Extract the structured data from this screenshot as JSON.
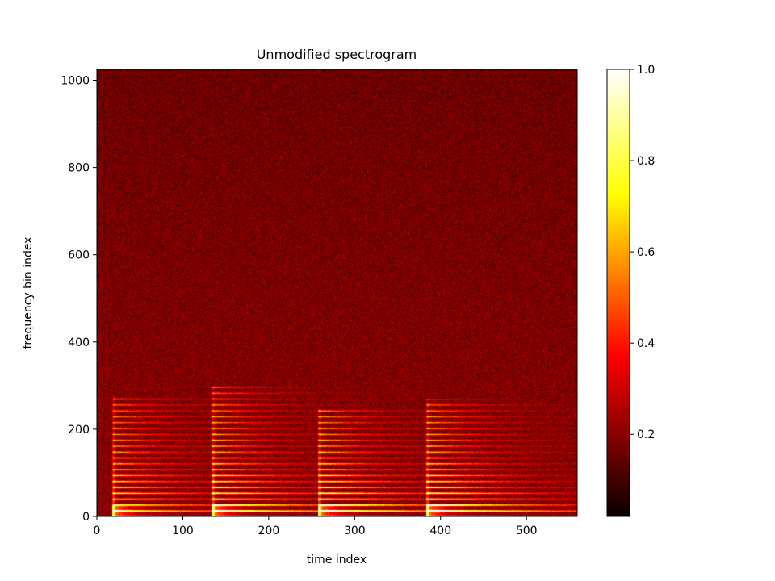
{
  "chart_data": {
    "type": "heatmap",
    "title": "Unmodified spectrogram",
    "xlabel": "time index",
    "ylabel": "frequency bin index",
    "xlim": [
      0,
      559
    ],
    "ylim": [
      0,
      1025
    ],
    "xticks": [
      0,
      100,
      200,
      300,
      400,
      500
    ],
    "yticks": [
      0,
      200,
      400,
      600,
      800,
      1000
    ],
    "colormap": "hot",
    "colorbar": {
      "range": [
        0.02,
        1.0
      ],
      "ticks": [
        0.2,
        0.4,
        0.6,
        0.8,
        1.0
      ],
      "tick_labels": [
        "0.2",
        "0.4",
        "0.6",
        "0.8",
        "1.0"
      ]
    },
    "background_level": 0.18,
    "note_onsets": [
      {
        "time": 19,
        "spread_top_bin": 280,
        "harmonic_spacing_bins": 13.5
      },
      {
        "time": 134,
        "spread_top_bin": 300,
        "harmonic_spacing_bins": 13.5
      },
      {
        "time": 258,
        "spread_top_bin": 250,
        "harmonic_spacing_bins": 13.5
      },
      {
        "time": 384,
        "spread_top_bin": 270,
        "harmonic_spacing_bins": 13.5
      }
    ]
  },
  "colors": {
    "hot_colormap": [
      "#0a0000",
      "#ff0000",
      "#ffff00",
      "#ffffff"
    ]
  }
}
